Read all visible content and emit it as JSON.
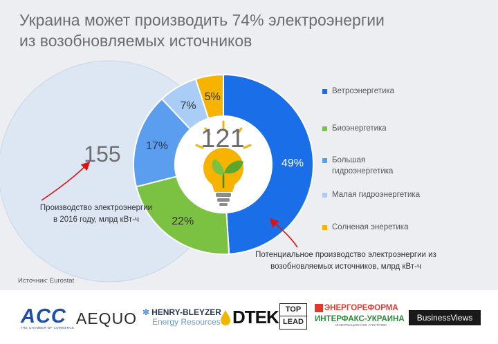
{
  "title_lines": [
    "Украина может производить 74% электроэнергии",
    "из возобновляемых источников"
  ],
  "source": "Источник: Eurostat",
  "annotations": {
    "production_2016": "Производство электроэнергии\nв 2016 году, млрд кВт-ч",
    "renewable_potential": "Потенциальное производство электроэнергии из\nвозобновляемых источников, млрд кВт-ч"
  },
  "chart_data": {
    "type": "pie",
    "subtype": "donut",
    "total_2016": "155",
    "total_potential": "121",
    "slices": [
      {
        "label": "Ветроэнергетика",
        "value": 49,
        "value_label": "49%",
        "color": "#1a6fe8"
      },
      {
        "label": "Биоэнергетика",
        "value": 22,
        "value_label": "22%",
        "color": "#7cc242"
      },
      {
        "label": "Большая\nгидроэнергетика",
        "value": 17,
        "value_label": "17%",
        "color": "#5b9ef0"
      },
      {
        "label": "Малая гидроэнергетика",
        "value": 7,
        "value_label": "7%",
        "color": "#a9cdf7"
      },
      {
        "label": "Солненая энеретика",
        "value": 5,
        "value_label": "5%",
        "color": "#f6b400"
      }
    ],
    "legend_position": "right"
  },
  "logos": {
    "acc": "ACC",
    "acc_sub": "THE CHAMBER OF COMMERCE",
    "aequo": "AEQUO",
    "hb_top": "HENRY-BLEYZER",
    "hb_bottom": "Energy Resources",
    "dtek": "DTEK",
    "toplead_top": "TOP",
    "toplead_bottom": "LEAD",
    "er_top": "ЭНЕРГОРЕФОРМА",
    "ifx": "ИНТЕРФАКС-УКРАИНА",
    "ifx_sub": "ИНФОРМАЦИОННОЕ АГЕНТСТВО",
    "bv": "BusinessViews"
  },
  "colors": {
    "background": "#eceef1",
    "outer_circle": "#dde7f4"
  }
}
